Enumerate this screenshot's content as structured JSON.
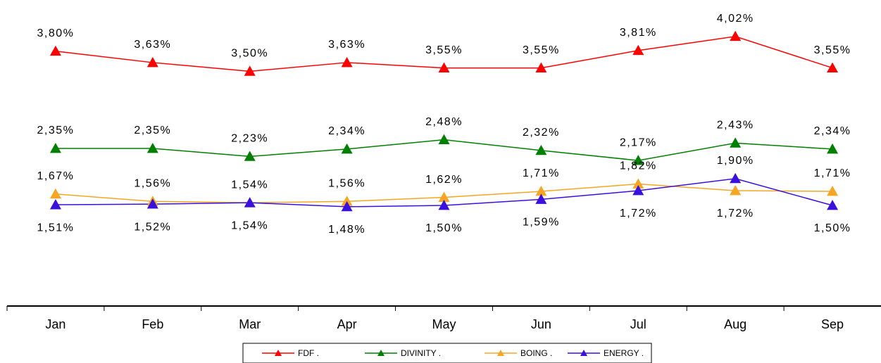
{
  "chart_data": {
    "type": "line",
    "categories": [
      "Jan",
      "Feb",
      "Mar",
      "Apr",
      "May",
      "Jun",
      "Jul",
      "Aug",
      "Sep"
    ],
    "series": [
      {
        "name": "FDF .",
        "color": "#ff0000",
        "values": [
          3.8,
          3.63,
          3.5,
          3.63,
          3.55,
          3.55,
          3.81,
          4.02,
          3.55
        ],
        "value_labels": [
          "3,80%",
          "3,63%",
          "3,50%",
          "3,63%",
          "3,55%",
          "3,55%",
          "3,81%",
          "4,02%",
          "3,55%"
        ]
      },
      {
        "name": "DIVINITY .",
        "color": "#008000",
        "values": [
          2.35,
          2.35,
          2.23,
          2.34,
          2.48,
          2.32,
          2.17,
          2.43,
          2.34
        ],
        "value_labels": [
          "2,35%",
          "2,35%",
          "2,23%",
          "2,34%",
          "2,48%",
          "2,32%",
          "2,17%",
          "2,43%",
          "2,34%"
        ]
      },
      {
        "name": "BOING .",
        "color": "#f5a623",
        "values": [
          1.67,
          1.56,
          1.54,
          1.56,
          1.62,
          1.71,
          1.82,
          1.72,
          1.71
        ],
        "value_labels": [
          "1,67%",
          "1,56%",
          "1,54%",
          "1,56%",
          "1,62%",
          "1,71%",
          "1,82%",
          "1,72%",
          "1,71%"
        ]
      },
      {
        "name": "ENERGY .",
        "color": "#3a10dd",
        "values": [
          1.51,
          1.52,
          1.54,
          1.48,
          1.5,
          1.59,
          1.72,
          1.9,
          1.5
        ],
        "value_labels": [
          "1,51%",
          "1,52%",
          "1,54%",
          "1,48%",
          "1,50%",
          "1,59%",
          "1,72%",
          "1,90%",
          "1,50%"
        ]
      }
    ],
    "ylim": [
      0,
      4.5
    ]
  }
}
